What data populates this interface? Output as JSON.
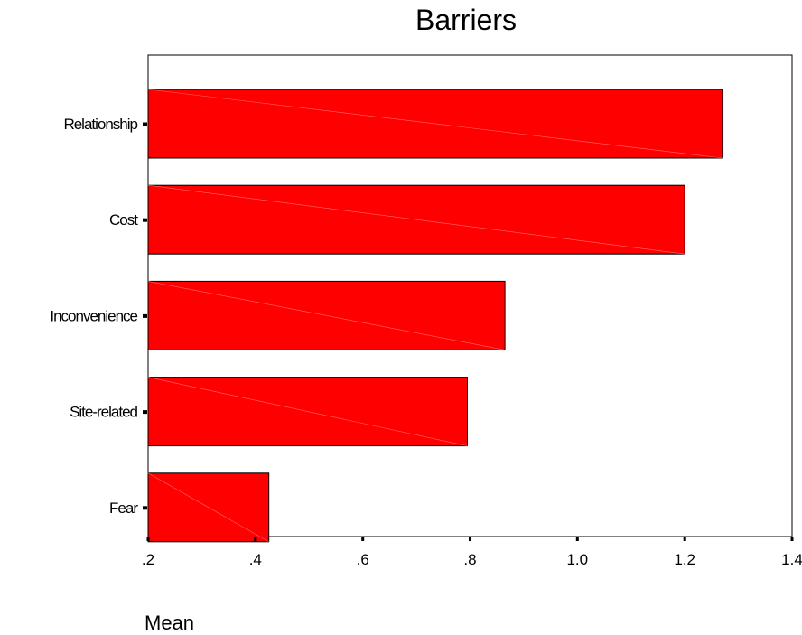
{
  "chart_data": {
    "type": "bar",
    "orientation": "horizontal",
    "title": "Barriers",
    "xlabel": "Mean",
    "ylabel": "",
    "categories": [
      "Relationship",
      "Cost",
      "Inconvenience",
      "Site-related",
      "Fear"
    ],
    "values": [
      1.27,
      1.2,
      0.865,
      0.795,
      0.425
    ],
    "xlim": [
      0.2,
      1.4
    ],
    "xticks": [
      ".2",
      ".4",
      ".6",
      ".8",
      "1.0",
      "1.2",
      "1.4"
    ],
    "bar_color": "#ff0000",
    "grid": false,
    "legend": "none"
  }
}
